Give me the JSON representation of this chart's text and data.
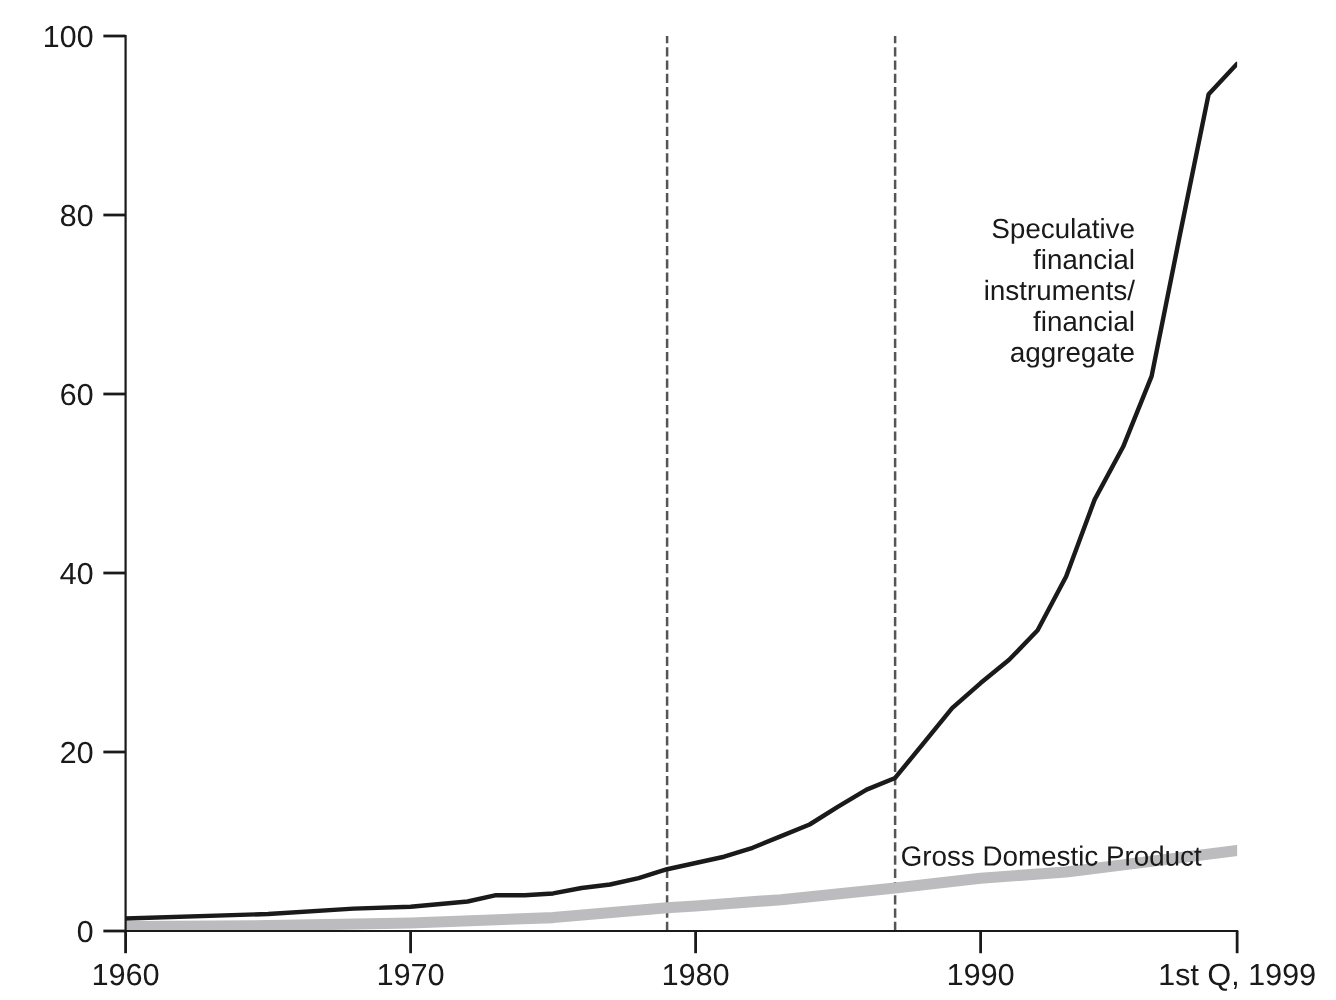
{
  "chart_data": {
    "type": "line",
    "xlim": [
      1960,
      1999
    ],
    "ylim": [
      0,
      100
    ],
    "xticks": [
      1960,
      1970,
      1980,
      1990,
      {
        "value": 1999,
        "label": "1st Q, 1999"
      }
    ],
    "yticks": [
      0,
      20,
      40,
      60,
      80,
      100
    ],
    "grid": false,
    "legend": false,
    "marker": "none",
    "line_style": "solid",
    "ref_lines": [
      {
        "axis": "x",
        "value": 1979,
        "label": null,
        "color": "#555555",
        "line_style": "dashed"
      },
      {
        "axis": "x",
        "value": 1987,
        "label": null,
        "color": "#555555",
        "line_style": "dashed"
      }
    ],
    "series": [
      {
        "name": "Speculative\nfinancial\ninstruments/\nfinancial\naggregate",
        "color": "#1a1a1a",
        "x": [
          1960,
          1965,
          1968,
          1970,
          1972,
          1973,
          1974,
          1975,
          1976,
          1977,
          1978,
          1979,
          1980,
          1981,
          1982,
          1983,
          1984,
          1985,
          1986,
          1987,
          1988,
          1989,
          1990,
          1991,
          1992,
          1993,
          1994,
          1995,
          1996,
          1997,
          1998,
          1999
        ],
        "values": [
          1.4,
          1.9,
          2.5,
          2.7,
          3.3,
          4.0,
          4.0,
          4.2,
          4.8,
          5.2,
          5.9,
          6.9,
          7.6,
          8.3,
          9.3,
          10.6,
          11.9,
          13.9,
          15.8,
          17.1,
          21.0,
          24.9,
          27.7,
          30.3,
          33.6,
          39.6,
          48.2,
          54.1,
          62.0,
          77.9,
          93.5,
          96.9
        ]
      },
      {
        "name": "Gross Domestic Product",
        "color": "#bcbcbe",
        "x": [
          1960,
          1965,
          1970,
          1975,
          1979,
          1980,
          1983,
          1987,
          1990,
          1993,
          1996,
          1999
        ],
        "values": [
          0.5,
          0.6,
          0.9,
          1.5,
          2.6,
          2.8,
          3.5,
          4.8,
          5.9,
          6.6,
          7.8,
          9.0
        ]
      }
    ]
  }
}
